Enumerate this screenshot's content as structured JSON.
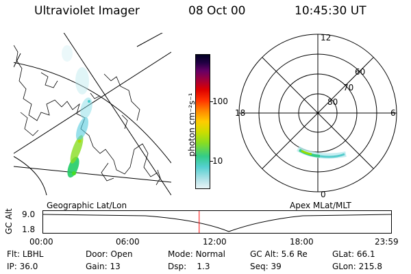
{
  "header": {
    "instrument": "Ultraviolet Imager",
    "date": "08 Oct 00",
    "time": "10:45:30 UT"
  },
  "colorbar": {
    "unit_label": "photon cm⁻²s⁻¹",
    "ticks": [
      "100",
      "10"
    ]
  },
  "geo_map": {
    "label": "Geographic Lat/Lon"
  },
  "polar_plot": {
    "label": "Apex MLat/MLT",
    "mlt_labels": {
      "top": "12",
      "left": "18",
      "right": "6",
      "bottom": "0"
    },
    "mlat_labels": [
      "60",
      "70",
      "80"
    ]
  },
  "altitude_strip": {
    "ylabel": "GC Alt",
    "y_ticks": [
      "9.0",
      "1.8"
    ],
    "x_ticks": [
      "00:00",
      "06:00",
      "12:00",
      "18:00",
      "23:59"
    ],
    "marker_time_hours": 10.76,
    "marker_color": "#ff0000"
  },
  "info": {
    "row1": [
      {
        "key": "Flt:",
        "value": "LBHL"
      },
      {
        "key": "Door:",
        "value": "Open"
      },
      {
        "key": "Mode:",
        "value": "Normal"
      },
      {
        "key": "GC Alt:",
        "value": "5.6 Re"
      },
      {
        "key": "GLat:",
        "value": "66.1"
      }
    ],
    "row2": [
      {
        "key": "IP:",
        "value": "36.0"
      },
      {
        "key": "Gain:",
        "value": "13"
      },
      {
        "key": "Dsp:",
        "value": "1.3"
      },
      {
        "key": "Seq:",
        "value": "39"
      },
      {
        "key": "GLon:",
        "value": "215.8"
      }
    ]
  }
}
